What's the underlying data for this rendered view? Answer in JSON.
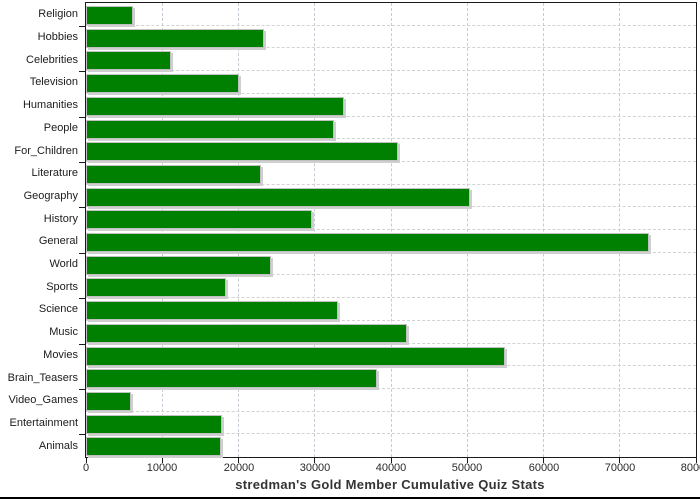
{
  "chart_data": {
    "type": "bar",
    "orientation": "horizontal",
    "title": "stredman's Gold Member Cumulative Quiz Stats",
    "title_position": "bottom",
    "xlabel": "",
    "ylabel": "",
    "xlim": [
      0,
      80000
    ],
    "x_ticks": [
      0,
      10000,
      20000,
      30000,
      40000,
      50000,
      60000,
      70000,
      80000
    ],
    "grid": "dashed",
    "legend": "none",
    "categories": [
      "Religion",
      "Hobbies",
      "Celebrities",
      "Television",
      "Humanities",
      "People",
      "For_Children",
      "Literature",
      "Geography",
      "History",
      "General",
      "World",
      "Sports",
      "Science",
      "Music",
      "Movies",
      "Brain_Teasers",
      "Video_Games",
      "Entertainment",
      "Animals"
    ],
    "values": [
      6100,
      23300,
      11100,
      20000,
      33900,
      32500,
      40900,
      23000,
      50400,
      29700,
      73800,
      24300,
      18300,
      33000,
      42100,
      55000,
      38200,
      5900,
      17900,
      17700
    ],
    "bar_color": "#008000",
    "bar_border_color": "#c2c2c2",
    "bar_shadow_color": "#cfcfcf",
    "grid_color_vertical": "#c6ccd6",
    "grid_color_horizontal": "#d2d2d2",
    "axis_color": "#1a1a1a",
    "title_color": "#333333"
  }
}
